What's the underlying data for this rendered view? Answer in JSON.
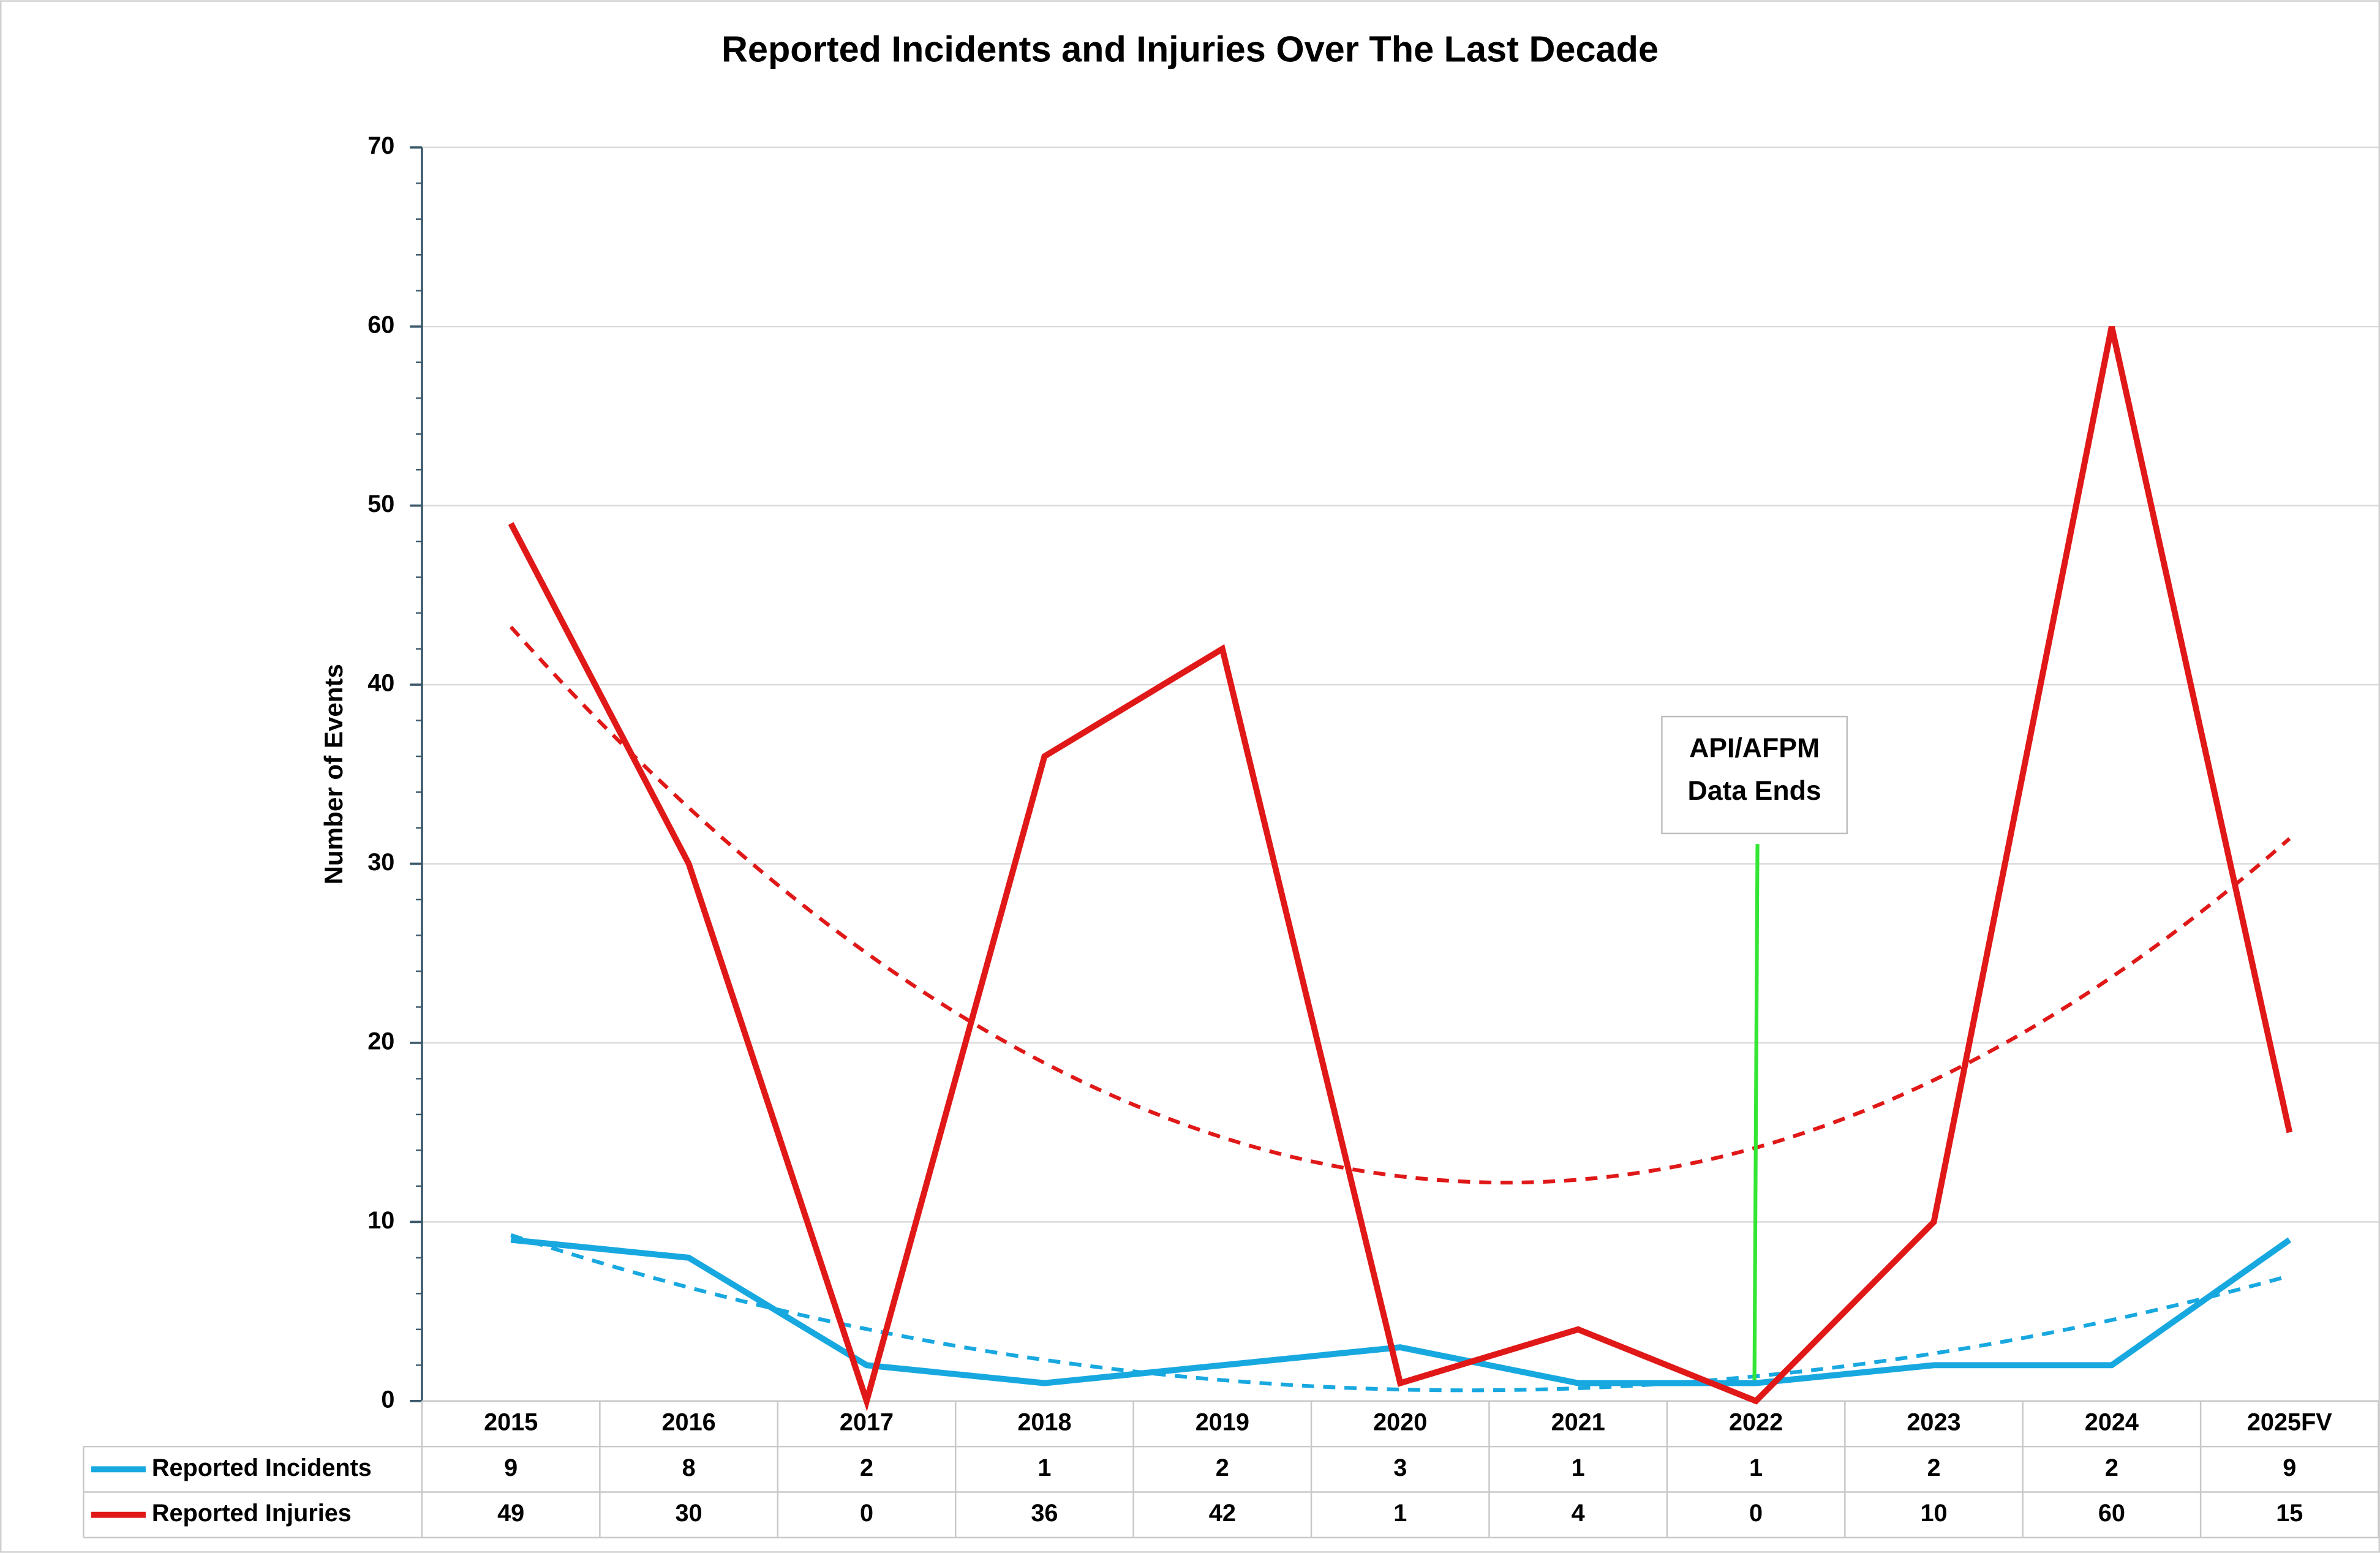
{
  "chart_data": {
    "type": "line",
    "title": "Reported Incidents and Injuries Over The Last Decade",
    "y_label": "Number of Events",
    "categories": [
      "2015",
      "2016",
      "2017",
      "2018",
      "2019",
      "2020",
      "2021",
      "2022",
      "2023",
      "2024",
      "2025FV"
    ],
    "series": [
      {
        "name": "Reported Incidents",
        "color": "#18a8e0",
        "values": [
          9,
          8,
          2,
          1,
          2,
          3,
          1,
          1,
          2,
          2,
          9
        ]
      },
      {
        "name": "Reported Injuries",
        "color": "#e01818",
        "values": [
          49,
          30,
          0,
          36,
          42,
          1,
          4,
          0,
          10,
          60,
          15
        ]
      }
    ],
    "ylim": [
      0,
      70
    ],
    "yticks": [
      0,
      10,
      20,
      30,
      40,
      50,
      60,
      70
    ],
    "minor_tick_interval": 2,
    "grid": true,
    "trendline": {
      "type": "polynomial",
      "order": 2,
      "dashed": true
    },
    "annotation": {
      "lines": [
        "API/AFPM",
        "Data Ends"
      ],
      "category": "2022",
      "color": "#33e633"
    },
    "data_table": true
  }
}
